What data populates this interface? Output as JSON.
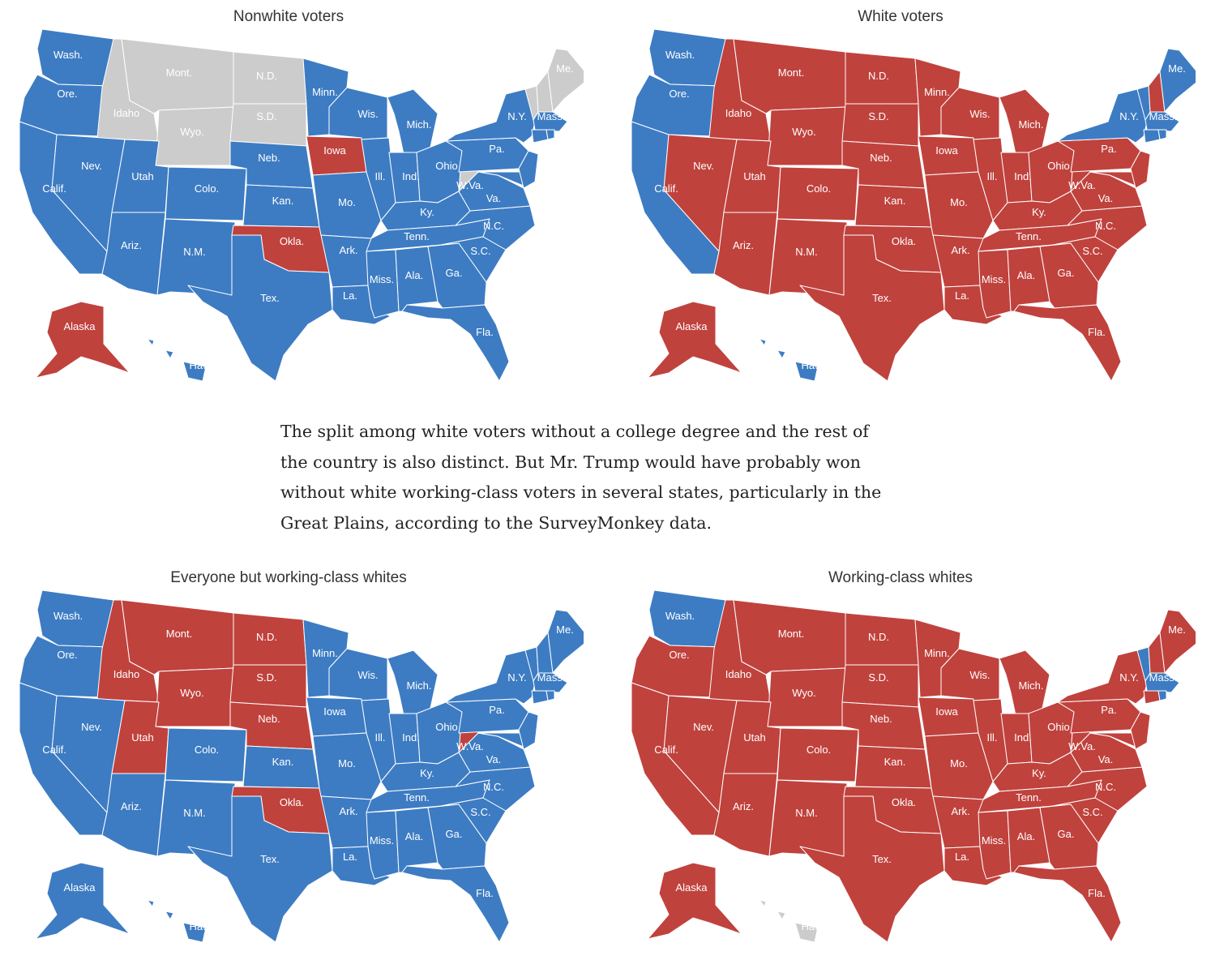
{
  "colors": {
    "blue": "#3d7cc3",
    "red": "#c0423d",
    "gray": "#cccccc"
  },
  "state_abbrevs": {
    "WA": "Wash.",
    "OR": "Ore.",
    "CA": "Calif.",
    "ID": "Idaho",
    "NV": "Nev.",
    "MT": "Mont.",
    "WY": "Wyo.",
    "UT": "Utah",
    "AZ": "Ariz.",
    "CO": "Colo.",
    "NM": "N.M.",
    "ND": "N.D.",
    "SD": "S.D.",
    "NE": "Neb.",
    "KS": "Kan.",
    "OK": "Okla.",
    "TX": "Tex.",
    "MN": "Minn.",
    "IA": "Iowa",
    "MO": "Mo.",
    "AR": "Ark.",
    "LA": "La.",
    "WI": "Wis.",
    "IL": "Ill.",
    "MI": "Mich.",
    "IN": "Ind.",
    "OH": "Ohio",
    "KY": "Ky.",
    "TN": "Tenn.",
    "MS": "Miss.",
    "AL": "Ala.",
    "GA": "Ga.",
    "FL": "Fla.",
    "SC": "S.C.",
    "NC": "N.C.",
    "VA": "Va.",
    "WV": "W.Va.",
    "PA": "Pa.",
    "NY": "N.Y.",
    "ME": "Me.",
    "MA": "Mass.",
    "AK": "Alaska",
    "HI": "Haw."
  },
  "paragraph": [
    "The split among white voters without a college degree and the rest of",
    "the country is also distinct. But Mr. Trump would have probably won",
    "without white working-class voters in several states, particularly in the",
    "Great Plains, according to the SurveyMonkey data."
  ],
  "maps": [
    {
      "title": "Nonwhite voters",
      "default": "blue",
      "states": {
        "ID": "gray",
        "MT": "gray",
        "WY": "gray",
        "ND": "gray",
        "SD": "gray",
        "ME": "gray",
        "VT": "gray",
        "NH": "gray",
        "WV": "gray",
        "IA": "red",
        "OK": "red",
        "AK": "red"
      }
    },
    {
      "title": "White voters",
      "default": "red",
      "states": {
        "WA": "blue",
        "OR": "blue",
        "CA": "blue",
        "NY": "blue",
        "VT": "blue",
        "ME": "blue",
        "MA": "blue",
        "CT": "blue",
        "RI": "blue",
        "HI": "blue"
      }
    },
    {
      "title": "Everyone but working-class whites",
      "default": "blue",
      "states": {
        "ID": "red",
        "MT": "red",
        "WY": "red",
        "UT": "red",
        "ND": "red",
        "SD": "red",
        "NE": "red",
        "OK": "red",
        "WV": "red"
      }
    },
    {
      "title": "Working-class whites",
      "default": "red",
      "states": {
        "WA": "blue",
        "VT": "blue",
        "MA": "blue",
        "RI": "blue",
        "HI": "gray"
      }
    }
  ]
}
